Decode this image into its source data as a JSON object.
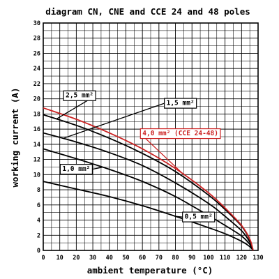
{
  "chart_data": {
    "type": "line",
    "title": "diagram CN, CNE and CCE 24 and 48 poles",
    "xlabel": "ambient temperature (°C)",
    "ylabel": "working current (A)",
    "xlim": [
      0,
      130
    ],
    "ylim": [
      0,
      30
    ],
    "x_ticks": [
      0,
      10,
      20,
      30,
      40,
      50,
      60,
      70,
      80,
      90,
      100,
      110,
      120,
      130
    ],
    "y_ticks": [
      0,
      2,
      4,
      6,
      8,
      10,
      12,
      14,
      16,
      18,
      20,
      22,
      24,
      26,
      28,
      30
    ],
    "grid": true,
    "series": [
      {
        "name": "0,5 mm²",
        "color": "#000000",
        "x": [
          0,
          20,
          40,
          60,
          80,
          100,
          110,
          120,
          125,
          127
        ],
        "y": [
          9.1,
          8.1,
          7.1,
          5.9,
          4.5,
          3.0,
          2.2,
          1.2,
          0.5,
          0.0
        ]
      },
      {
        "name": "1,0 mm²",
        "color": "#000000",
        "x": [
          0,
          20,
          40,
          60,
          80,
          100,
          110,
          120,
          125,
          127
        ],
        "y": [
          13.4,
          12.1,
          10.7,
          9.1,
          7.1,
          4.6,
          3.3,
          1.9,
          0.8,
          0.0
        ]
      },
      {
        "name": "1,5 mm²",
        "color": "#000000",
        "x": [
          0,
          20,
          40,
          60,
          80,
          100,
          110,
          120,
          125,
          127
        ],
        "y": [
          15.5,
          14.3,
          12.9,
          11.2,
          8.9,
          6.2,
          4.5,
          2.6,
          1.1,
          0.0
        ]
      },
      {
        "name": "2,5 mm²",
        "color": "#000000",
        "x": [
          0,
          20,
          40,
          60,
          80,
          100,
          110,
          120,
          125,
          127
        ],
        "y": [
          17.9,
          16.5,
          14.8,
          12.8,
          10.4,
          7.3,
          5.4,
          3.2,
          1.4,
          0.0
        ]
      },
      {
        "name": "4,0 mm² (CCE 24-48)",
        "color": "#cc2222",
        "x": [
          0,
          20,
          40,
          60,
          80,
          100,
          110,
          120,
          125,
          127
        ],
        "y": [
          18.8,
          17.3,
          15.5,
          13.4,
          10.8,
          7.6,
          5.6,
          3.3,
          1.5,
          0.0
        ]
      }
    ],
    "annotations": [
      {
        "text": "0,5 mm²",
        "color": "#000000",
        "x": 94,
        "y": 4.5
      },
      {
        "text": "1,0 mm²",
        "color": "#000000",
        "x": 20,
        "y": 10.8
      },
      {
        "text": "1,5 mm²",
        "color": "#000000",
        "x": 83,
        "y": 19.5
      },
      {
        "text": "2,5 mm²",
        "color": "#000000",
        "x": 22,
        "y": 20.5
      },
      {
        "text": "4,0 mm² (CCE 24-48)",
        "color": "#cc2222",
        "x": 83,
        "y": 15.5
      }
    ]
  }
}
